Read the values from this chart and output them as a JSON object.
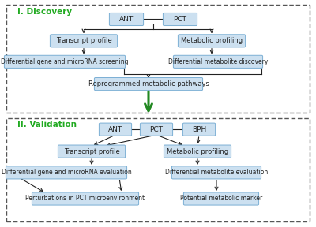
{
  "fig_width": 4.0,
  "fig_height": 2.88,
  "dpi": 100,
  "bg_color": "#ffffff",
  "box_fill": "#cce0f0",
  "box_edge": "#7bafd4",
  "box_text_color": "#222222",
  "section_label_color": "#22aa22",
  "arrow_color": "#222222",
  "green_arrow_color": "#228822",
  "dashed_border_color": "#555555",
  "discovery_label": "I. Discovery",
  "validation_label": "II. Validation",
  "xlim": [
    0,
    1
  ],
  "ylim": [
    0,
    1
  ]
}
